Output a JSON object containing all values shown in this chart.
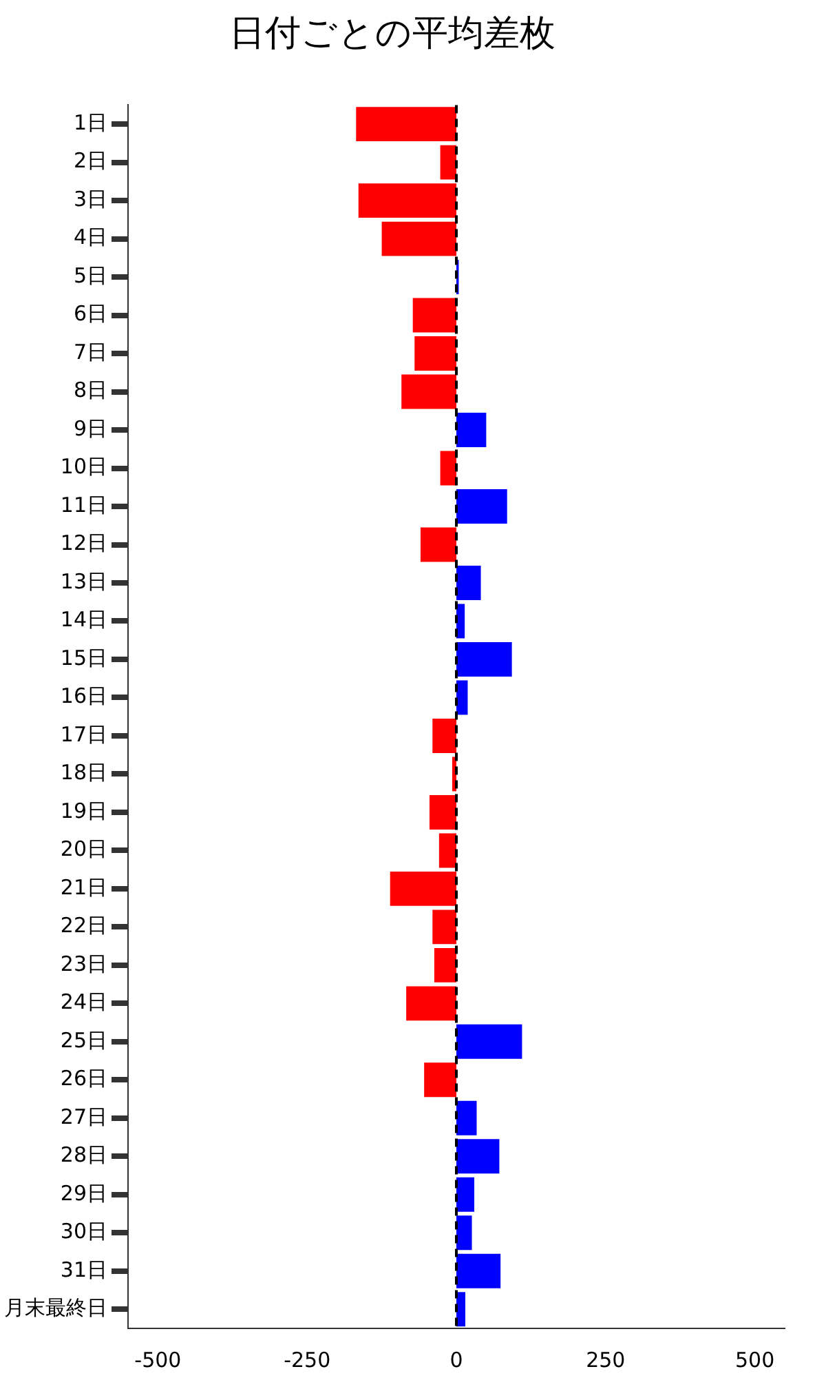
{
  "chart_data": {
    "type": "bar",
    "orientation": "horizontal",
    "title": "日付ごとの平均差枚",
    "categories": [
      "1日",
      "2日",
      "3日",
      "4日",
      "5日",
      "6日",
      "7日",
      "8日",
      "9日",
      "10日",
      "11日",
      "12日",
      "13日",
      "14日",
      "15日",
      "16日",
      "17日",
      "18日",
      "19日",
      "20日",
      "21日",
      "22日",
      "23日",
      "24日",
      "25日",
      "26日",
      "27日",
      "28日",
      "29日",
      "30日",
      "31日",
      "月末最終日"
    ],
    "values": [
      -168,
      -27,
      -164,
      -125,
      4,
      -73,
      -70,
      -92,
      50,
      -27,
      85,
      -60,
      41,
      14,
      93,
      19,
      -40,
      -7,
      -45,
      -29,
      -111,
      -40,
      -37,
      -84,
      110,
      -54,
      34,
      72,
      30,
      26,
      74,
      15
    ],
    "colors": [
      "#ff0000",
      "#ff0000",
      "#ff0000",
      "#ff0000",
      "#0000ff",
      "#ff0000",
      "#ff0000",
      "#ff0000",
      "#0000ff",
      "#ff0000",
      "#0000ff",
      "#ff0000",
      "#0000ff",
      "#0000ff",
      "#0000ff",
      "#0000ff",
      "#ff0000",
      "#ff0000",
      "#ff0000",
      "#ff0000",
      "#ff0000",
      "#ff0000",
      "#ff0000",
      "#ff0000",
      "#0000ff",
      "#ff0000",
      "#0000ff",
      "#0000ff",
      "#0000ff",
      "#0000ff",
      "#0000ff",
      "#0000ff"
    ],
    "xlim": [
      -550,
      550
    ],
    "xticks": [
      -500,
      -250,
      0,
      250,
      500
    ],
    "ref_lines": [
      {
        "axis": "x",
        "value": 0,
        "color": "#000000",
        "line_style": "dashed"
      }
    ],
    "grid": false,
    "legend": false
  }
}
